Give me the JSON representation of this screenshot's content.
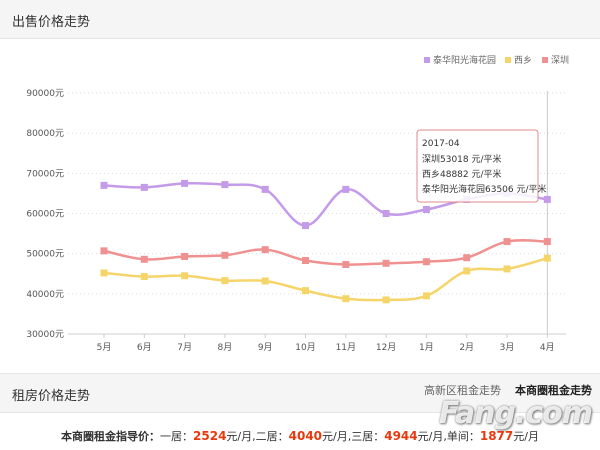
{
  "sale_section": {
    "title": "出售价格走势"
  },
  "rent_section": {
    "title": "租房价格走势",
    "tabs": [
      {
        "label": "高新区租金走势",
        "active": false
      },
      {
        "label": "本商圈租金走势",
        "active": true
      }
    ],
    "guide": {
      "label": "本商圈租金指导价：",
      "one_bed_prefix": "一居：",
      "one_bed_value": "2524",
      "one_bed_unit": "元/月,",
      "two_bed_prefix": "二居：",
      "two_bed_value": "4040",
      "two_bed_unit": "元/月,",
      "three_bed_prefix": "三居：",
      "three_bed_value": "4944",
      "three_bed_unit": "元/月,",
      "single_prefix": "单间：",
      "single_value": "1877",
      "single_unit": "元/月"
    }
  },
  "watermark": {
    "text": "Fang.com"
  },
  "chart_data": {
    "type": "line",
    "categories": [
      "5月",
      "6月",
      "7月",
      "8月",
      "9月",
      "10月",
      "11月",
      "12月",
      "1月",
      "2月",
      "3月",
      "4月"
    ],
    "ylim": [
      30000,
      90000
    ],
    "yticks": [
      30000,
      40000,
      50000,
      60000,
      70000,
      80000,
      90000
    ],
    "ytick_labels": [
      "30000元",
      "40000元",
      "50000元",
      "60000元",
      "70000元",
      "80000元",
      "90000元"
    ],
    "grid": true,
    "legend_position": "top-right",
    "series": [
      {
        "name": "泰华阳光海花园",
        "color": "#c39be9",
        "values": [
          67000,
          66500,
          67500,
          67200,
          66000,
          57000,
          66000,
          60000,
          61000,
          63506,
          65000,
          63506
        ]
      },
      {
        "name": "西乡",
        "color": "#f5d56a",
        "values": [
          45200,
          44300,
          44500,
          43300,
          43200,
          40800,
          38800,
          38500,
          39500,
          45700,
          46200,
          48882
        ]
      },
      {
        "name": "深圳",
        "color": "#ef9191",
        "values": [
          50700,
          48600,
          49300,
          49600,
          51000,
          48300,
          47300,
          47600,
          48000,
          49000,
          53018,
          53018
        ]
      }
    ],
    "tooltip": {
      "category_index": 11,
      "title": "2017-04",
      "lines": [
        "深圳53018 元/平米",
        "西乡48882 元/平米",
        "泰华阳光海花园63506 元/平米"
      ]
    }
  }
}
